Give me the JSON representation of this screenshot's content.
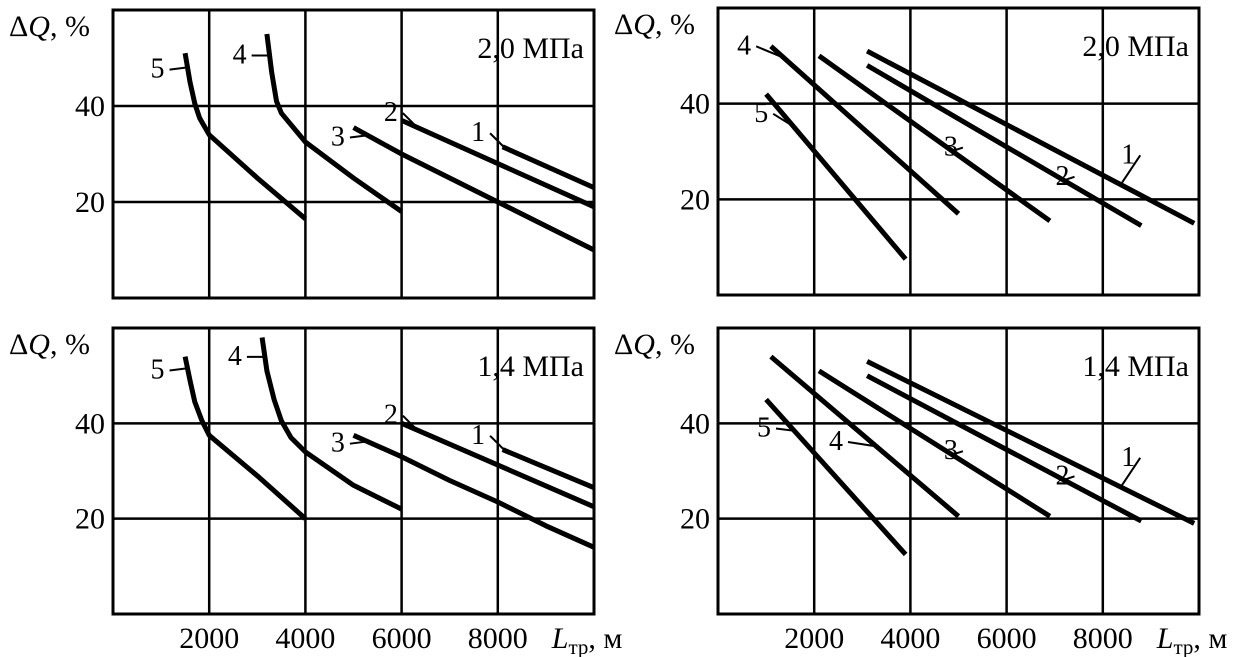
{
  "chart_data": [
    {
      "type": "line",
      "panel": "top-left",
      "ylabel_symbol": "ΔQ",
      "ylabel_unit": ", %",
      "xlabel_symbol": "L",
      "xlabel_sub": "тр",
      "xlabel_unit": ", м",
      "show_xticks": false,
      "annotation": "2,0 МПа",
      "xlim": [
        0,
        10000
      ],
      "ylim": [
        0,
        60
      ],
      "xticks": [
        2000,
        4000,
        6000,
        8000
      ],
      "yticks": [
        20,
        40
      ],
      "grid": true,
      "series": [
        {
          "label": "1",
          "points": [
            [
              8100,
              31.5
            ],
            [
              10000,
              23
            ]
          ]
        },
        {
          "label": "2",
          "points": [
            [
              6000,
              37
            ],
            [
              10000,
              19
            ]
          ]
        },
        {
          "label": "3",
          "points": [
            [
              5000,
              35.5
            ],
            [
              6000,
              30
            ],
            [
              7000,
              25
            ],
            [
              8000,
              20
            ],
            [
              9000,
              15
            ],
            [
              10000,
              10
            ]
          ]
        },
        {
          "label": "4",
          "points": [
            [
              3200,
              55
            ],
            [
              3300,
              47
            ],
            [
              3400,
              41
            ],
            [
              3500,
              38.5
            ],
            [
              4000,
              32.5
            ],
            [
              5000,
              25
            ],
            [
              6000,
              18
            ]
          ]
        },
        {
          "label": "5",
          "points": [
            [
              1500,
              51
            ],
            [
              1600,
              45
            ],
            [
              1700,
              40.5
            ],
            [
              1800,
              37.5
            ],
            [
              2000,
              34
            ],
            [
              3000,
              25
            ],
            [
              4000,
              16.5
            ]
          ]
        }
      ]
    },
    {
      "type": "line",
      "panel": "top-right",
      "ylabel_symbol": "ΔQ",
      "ylabel_unit": ", %",
      "xlabel_symbol": "L",
      "xlabel_sub": "тр",
      "xlabel_unit": ", м",
      "show_xticks": false,
      "annotation": "2,0 МПа",
      "xlim": [
        0,
        10000
      ],
      "ylim": [
        0,
        60
      ],
      "xticks": [
        2000,
        4000,
        6000,
        8000
      ],
      "yticks": [
        20,
        40
      ],
      "grid": true,
      "series": [
        {
          "label": "1",
          "points": [
            [
              3100,
              51
            ],
            [
              9900,
              15
            ]
          ]
        },
        {
          "label": "2",
          "points": [
            [
              3100,
              48
            ],
            [
              8800,
              14.5
            ]
          ]
        },
        {
          "label": "3",
          "points": [
            [
              2100,
              50
            ],
            [
              6900,
              15.5
            ]
          ]
        },
        {
          "label": "4",
          "points": [
            [
              1100,
              52
            ],
            [
              5000,
              17
            ]
          ]
        },
        {
          "label": "5",
          "points": [
            [
              1000,
              42
            ],
            [
              3900,
              7.5
            ]
          ]
        }
      ]
    },
    {
      "type": "line",
      "panel": "bottom-left",
      "ylabel_symbol": "ΔQ",
      "ylabel_unit": ", %",
      "xlabel_symbol": "L",
      "xlabel_sub": "тр",
      "xlabel_unit": ", м",
      "show_xticks": true,
      "annotation": "1,4 МПа",
      "xlim": [
        0,
        10000
      ],
      "ylim": [
        0,
        60
      ],
      "xticks": [
        2000,
        4000,
        6000,
        8000
      ],
      "yticks": [
        20,
        40
      ],
      "grid": true,
      "series": [
        {
          "label": "1",
          "points": [
            [
              8100,
              34.5
            ],
            [
              10000,
              26.5
            ]
          ]
        },
        {
          "label": "2",
          "points": [
            [
              6000,
              40
            ],
            [
              10000,
              22.5
            ]
          ]
        },
        {
          "label": "3",
          "points": [
            [
              5000,
              37.5
            ],
            [
              6000,
              33
            ],
            [
              7000,
              28
            ],
            [
              8000,
              23.5
            ],
            [
              9000,
              18.5
            ],
            [
              10000,
              14
            ]
          ]
        },
        {
          "label": "4",
          "points": [
            [
              3100,
              58
            ],
            [
              3200,
              51
            ],
            [
              3350,
              45
            ],
            [
              3500,
              40.5
            ],
            [
              3700,
              37
            ],
            [
              4000,
              34
            ],
            [
              5000,
              27
            ],
            [
              6000,
              22
            ]
          ]
        },
        {
          "label": "5",
          "points": [
            [
              1500,
              54
            ],
            [
              1600,
              49
            ],
            [
              1700,
              44.5
            ],
            [
              1850,
              40.5
            ],
            [
              2000,
              37.5
            ],
            [
              3000,
              29
            ],
            [
              4000,
              20
            ]
          ]
        }
      ]
    },
    {
      "type": "line",
      "panel": "bottom-right",
      "ylabel_symbol": "ΔQ",
      "ylabel_unit": ", %",
      "xlabel_symbol": "L",
      "xlabel_sub": "тр",
      "xlabel_unit": ", м",
      "show_xticks": true,
      "annotation": "1,4 МПа",
      "xlim": [
        0,
        10000
      ],
      "ylim": [
        0,
        60
      ],
      "xticks": [
        2000,
        4000,
        6000,
        8000
      ],
      "yticks": [
        20,
        40
      ],
      "grid": true,
      "series": [
        {
          "label": "1",
          "points": [
            [
              3100,
              53
            ],
            [
              9900,
              19
            ]
          ]
        },
        {
          "label": "2",
          "points": [
            [
              3100,
              50
            ],
            [
              8800,
              19.5
            ]
          ]
        },
        {
          "label": "3",
          "points": [
            [
              2100,
              51
            ],
            [
              6900,
              20.5
            ]
          ]
        },
        {
          "label": "4",
          "points": [
            [
              1100,
              54
            ],
            [
              5000,
              20.5
            ]
          ]
        },
        {
          "label": "5",
          "points": [
            [
              1000,
              45
            ],
            [
              3900,
              12.5
            ]
          ]
        }
      ]
    }
  ]
}
